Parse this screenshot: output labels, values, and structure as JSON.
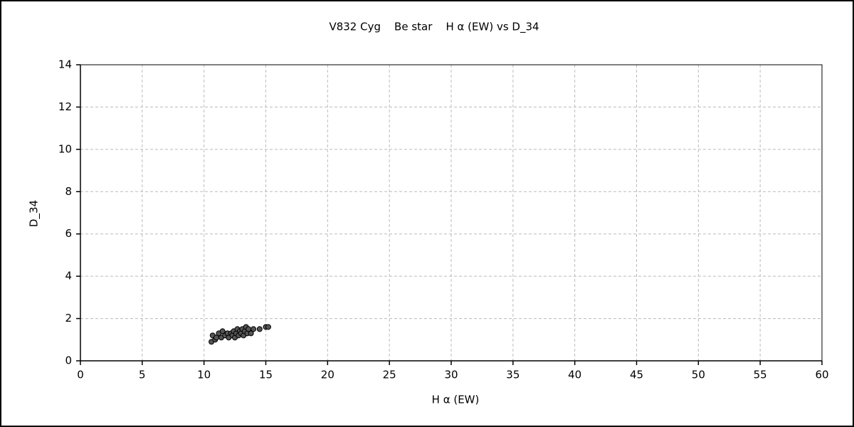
{
  "chart_data": {
    "type": "scatter",
    "title": "V832 Cyg    Be star    H α (EW) vs D_34",
    "x_label": "H α (EW)",
    "y_label": "D_34",
    "series": [
      {
        "color": "#555555",
        "x": [
          10.6,
          10.7,
          10.9,
          11.0,
          11.2,
          11.4,
          11.5,
          11.7,
          11.9,
          12.0,
          12.2,
          12.3,
          12.4,
          12.5,
          12.6,
          12.7,
          12.8,
          12.9,
          13.0,
          13.1,
          13.2,
          13.3,
          13.4,
          13.5,
          13.6,
          13.8,
          14.0,
          14.5,
          15.0,
          15.2
        ],
        "values": [
          0.9,
          1.2,
          1.0,
          1.1,
          1.3,
          1.1,
          1.4,
          1.2,
          1.3,
          1.1,
          1.3,
          1.2,
          1.4,
          1.1,
          1.3,
          1.5,
          1.2,
          1.4,
          1.3,
          1.5,
          1.2,
          1.4,
          1.6,
          1.3,
          1.5,
          1.3,
          1.5,
          1.5,
          1.6,
          1.6
        ]
      }
    ],
    "xlim": [
      0,
      60
    ],
    "xticks": [
      0,
      5,
      10,
      15,
      20,
      25,
      30,
      35,
      40,
      45,
      50,
      55,
      60
    ],
    "ylim": [
      0,
      14
    ],
    "yticks": [
      0,
      2,
      4,
      6,
      8,
      10,
      12,
      14
    ],
    "grid": true
  }
}
